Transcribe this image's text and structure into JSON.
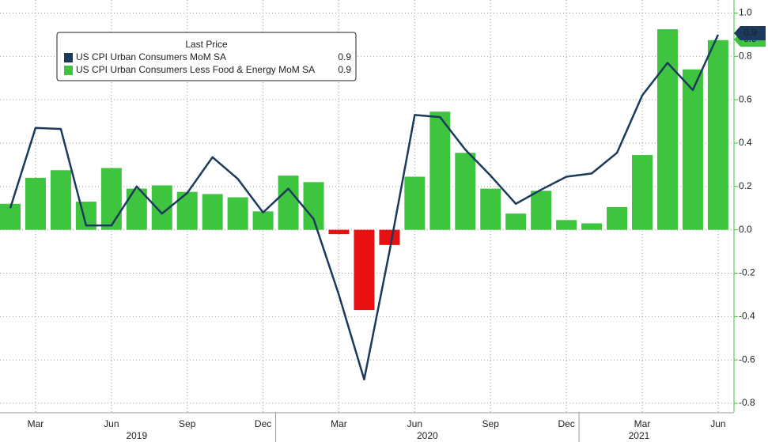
{
  "chart_data": {
    "type": "bar_line",
    "categories": [
      null,
      "Mar",
      null,
      null,
      "Jun",
      null,
      null,
      "Sep",
      null,
      null,
      "Dec",
      null,
      null,
      "Mar",
      null,
      null,
      "Jun",
      null,
      null,
      "Sep",
      null,
      null,
      "Dec",
      null,
      null,
      "Mar",
      null,
      null,
      "Jun"
    ],
    "year_labels": [
      "2019",
      "2020",
      "2021"
    ],
    "legend_title": "Last Price",
    "series": [
      {
        "name": "US CPI Urban Consumers MoM SA",
        "type": "line",
        "color": "#1b3a5c",
        "last_value": 0.9,
        "values": [
          0.1,
          0.47,
          0.465,
          0.02,
          0.02,
          0.2,
          0.075,
          0.17,
          0.335,
          0.235,
          0.08,
          0.19,
          0.05,
          -0.3,
          -0.69,
          -0.1,
          0.53,
          0.52,
          0.37,
          0.25,
          0.12,
          0.185,
          0.245,
          0.26,
          0.355,
          0.62,
          0.77,
          0.645,
          0.9
        ]
      },
      {
        "name": "US CPI Urban Consumers Less Food & Energy MoM SA",
        "type": "bar",
        "color": "#3ec43e",
        "negative_color": "#e81010",
        "last_value": 0.9,
        "values": [
          0.12,
          0.24,
          0.275,
          0.13,
          0.285,
          0.19,
          0.205,
          0.175,
          0.165,
          0.15,
          0.085,
          0.25,
          0.22,
          -0.02,
          -0.37,
          -0.07,
          0.245,
          0.545,
          0.355,
          0.19,
          0.075,
          0.18,
          0.045,
          0.03,
          0.105,
          0.345,
          0.925,
          0.74,
          0.875
        ]
      }
    ],
    "ylim": [
      -0.84,
      1.06
    ],
    "yticks": [
      {
        "value": 1,
        "label": "1.0"
      },
      0.8,
      0.6,
      0.4,
      0.2,
      {
        "value": 0,
        "label": "0.0"
      },
      -0.2,
      -0.4,
      -0.6,
      -0.8
    ],
    "grid": true
  }
}
